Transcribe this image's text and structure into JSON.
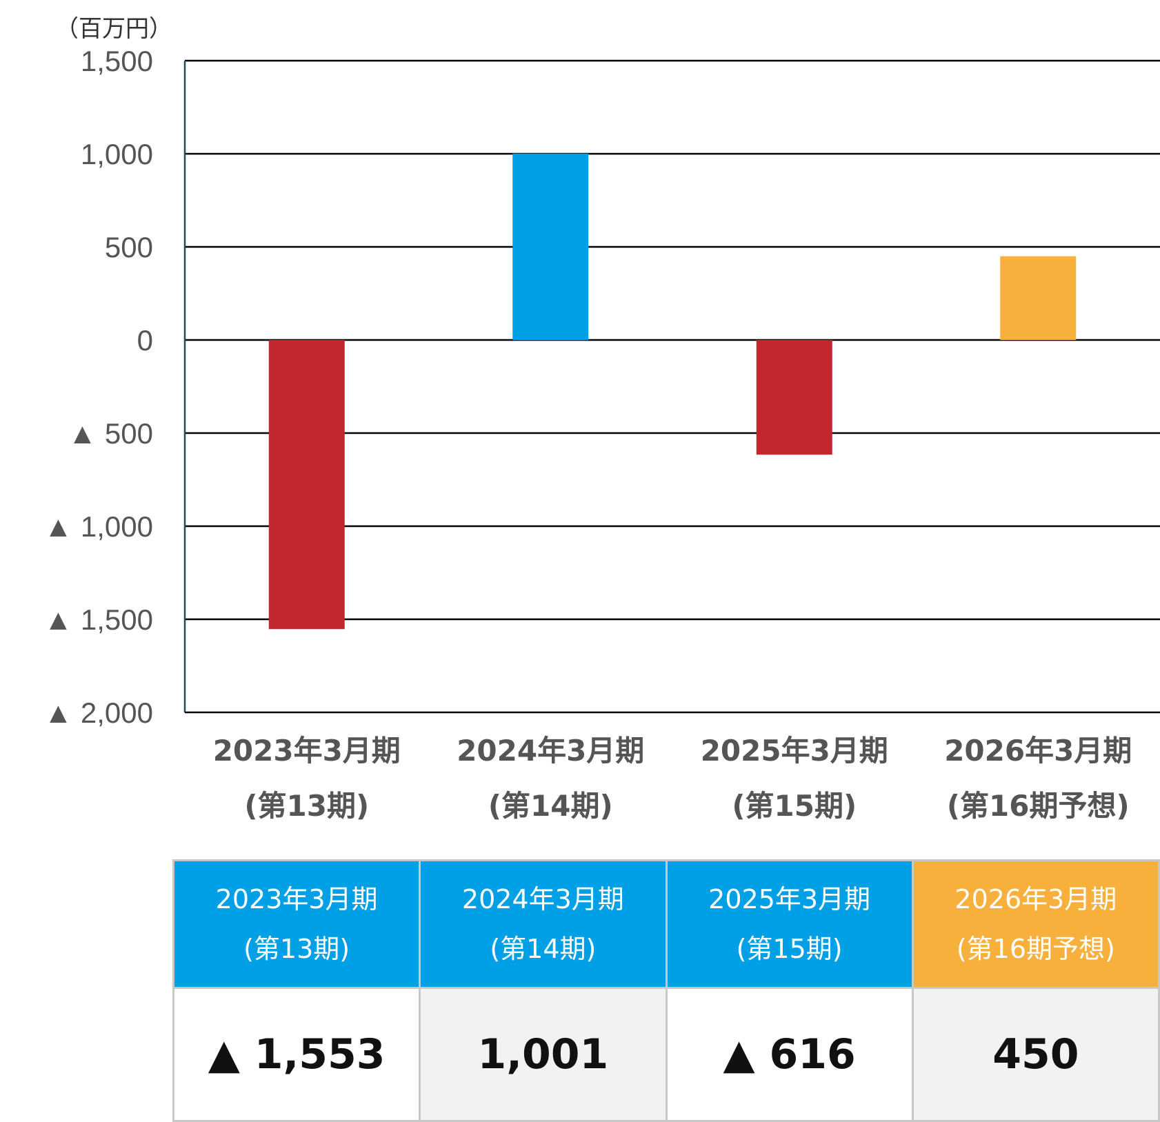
{
  "unit_label": "（百万円）",
  "colors": {
    "negative": "#c1272d",
    "positive": "#00a0e6",
    "forecast": "#f7b03c",
    "header_blue": "#00a0e6",
    "header_orange": "#f7b03c",
    "cell_white": "#ffffff",
    "cell_gray": "#f2f2f2"
  },
  "chart_data": {
    "type": "bar",
    "categories": [
      [
        "2023年3月期",
        "(第13期)"
      ],
      [
        "2024年3月期",
        "(第14期)"
      ],
      [
        "2025年3月期",
        "(第15期)"
      ],
      [
        "2026年3月期",
        "(第16期予想)"
      ]
    ],
    "values": [
      -1553,
      1001,
      -616,
      450
    ],
    "bar_colors": [
      "negative",
      "positive",
      "negative",
      "forecast"
    ],
    "ylim": [
      -2000,
      1500
    ],
    "yticks": [
      1500,
      1000,
      500,
      0,
      -500,
      -1000,
      -1500,
      -2000
    ],
    "ytick_labels": [
      "1,500",
      "1,000",
      "500",
      "0",
      "▲ 500",
      "▲ 1,000",
      "▲ 1,500",
      "▲ 2,000"
    ],
    "grid": true,
    "legend": "none"
  },
  "table": {
    "headers": [
      {
        "line1": "2023年3月期",
        "line2": "(第13期)",
        "color": "header_blue"
      },
      {
        "line1": "2024年3月期",
        "line2": "(第14期)",
        "color": "header_blue"
      },
      {
        "line1": "2025年3月期",
        "line2": "(第15期)",
        "color": "header_blue"
      },
      {
        "line1": "2026年3月期",
        "line2": "(第16期予想)",
        "color": "header_orange"
      }
    ],
    "values": [
      "▲ 1,553",
      "1,001",
      "▲ 616",
      "450"
    ],
    "value_backgrounds": [
      "cell_white",
      "cell_gray",
      "cell_white",
      "cell_gray"
    ]
  }
}
